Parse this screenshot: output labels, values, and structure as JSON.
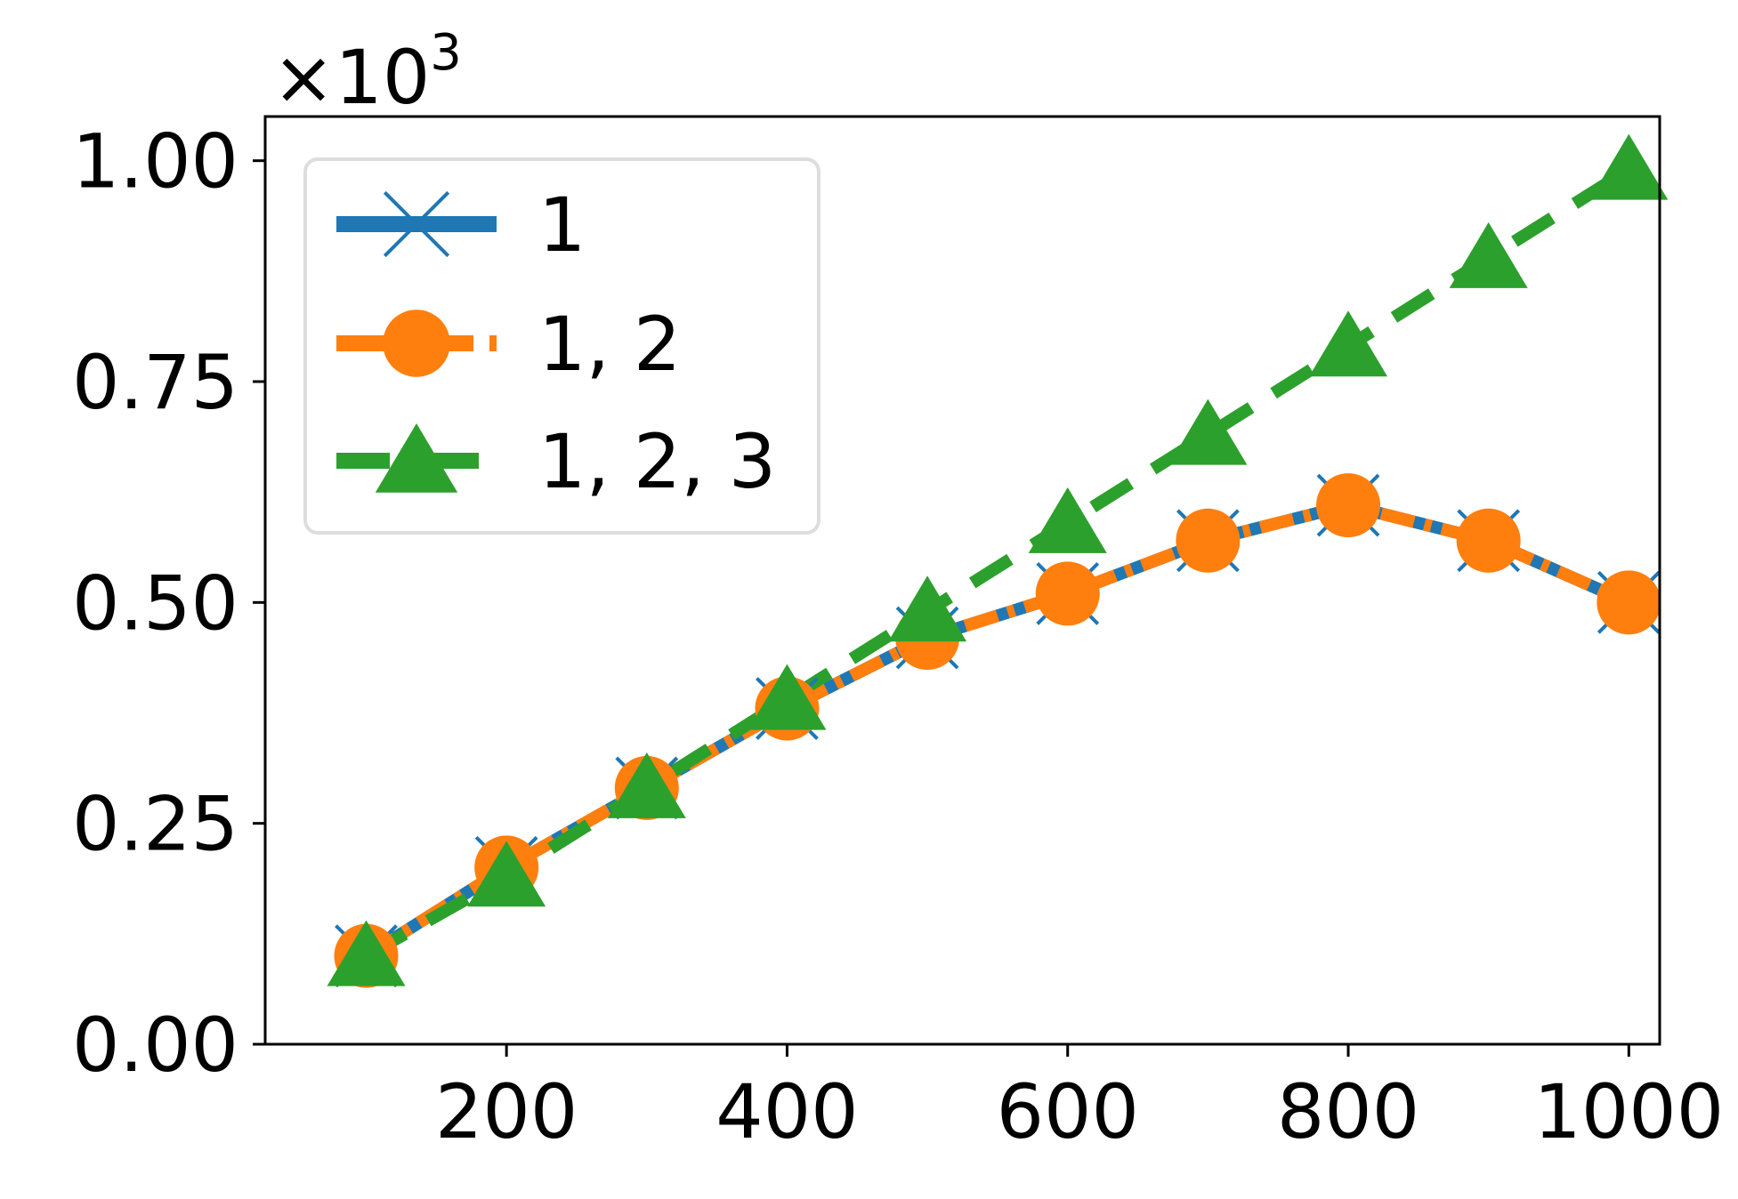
{
  "chart_data": {
    "type": "line",
    "title": "",
    "xlabel": "",
    "ylabel": "",
    "y_scale_label": "×10",
    "y_scale_exponent": "3",
    "xlim": [
      28,
      1022
    ],
    "ylim": [
      0,
      1.05
    ],
    "x_ticks": [
      200,
      400,
      600,
      800,
      1000
    ],
    "y_ticks": [
      0.0,
      0.25,
      0.5,
      0.75,
      1.0
    ],
    "x_tick_labels": [
      "200",
      "400",
      "600",
      "800",
      "1000"
    ],
    "y_tick_labels": [
      "0.00",
      "0.25",
      "0.50",
      "0.75",
      "1.00"
    ],
    "grid": false,
    "legend_position": "top-left",
    "x": [
      100,
      200,
      300,
      400,
      500,
      600,
      700,
      800,
      900,
      1000
    ],
    "series": [
      {
        "name": "1",
        "color": "#1f77b4",
        "marker": "x",
        "line_style": "solid",
        "values": [
          0.1,
          0.2,
          0.29,
          0.38,
          0.46,
          0.51,
          0.57,
          0.61,
          0.57,
          0.5
        ]
      },
      {
        "name": "1, 2",
        "color": "#ff7f0e",
        "marker": "circle",
        "line_style": "dash-dot",
        "values": [
          0.1,
          0.2,
          0.29,
          0.38,
          0.46,
          0.51,
          0.57,
          0.61,
          0.57,
          0.5
        ]
      },
      {
        "name": "1, 2, 3",
        "color": "#2ca02c",
        "marker": "triangle",
        "line_style": "dashed",
        "values": [
          0.1,
          0.19,
          0.29,
          0.39,
          0.49,
          0.59,
          0.69,
          0.79,
          0.89,
          0.99
        ]
      }
    ]
  }
}
